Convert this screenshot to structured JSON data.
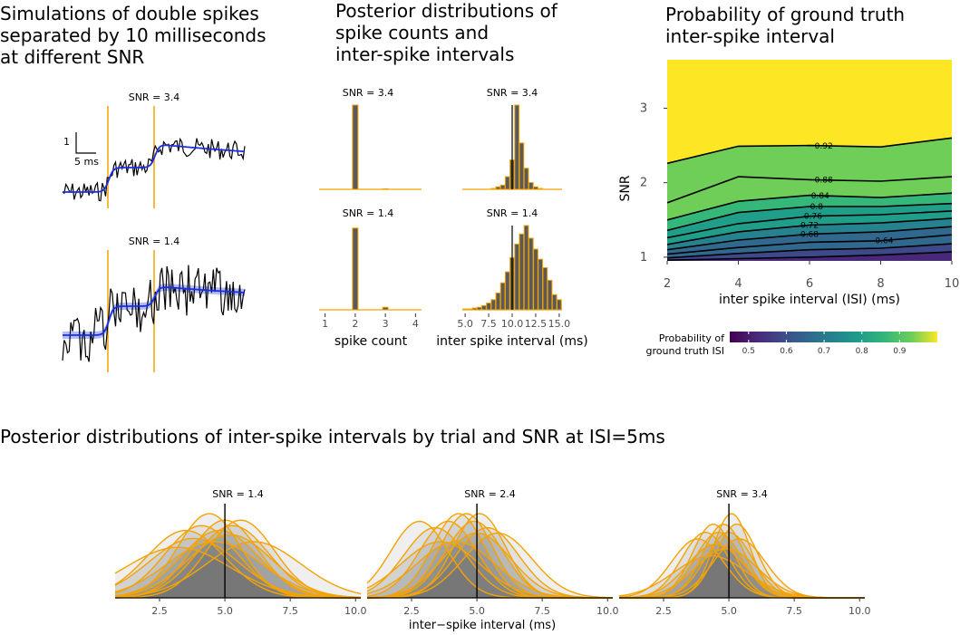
{
  "panel_a": {
    "title": "Simulations of double spikes\nseparated by 10 milliseconds\nat different SNR",
    "scalebar_y": "1",
    "scalebar_x": "5 ms",
    "facets": [
      "SNR = 3.4",
      "SNR = 1.4"
    ]
  },
  "panel_b": {
    "title": "Posterior distributions of\nspike counts and\ninter-spike intervals",
    "facet_top_left": "SNR = 3.4",
    "facet_top_right": "SNR = 3.4",
    "facet_bottom_left": "SNR = 1.4",
    "facet_bottom_right": "SNR = 1.4",
    "xlabel_count": "spike count",
    "xlabel_isi": "inter spike interval (ms)",
    "count_ticks": [
      "1",
      "2",
      "3",
      "4"
    ],
    "isi_ticks": [
      "5.0",
      "7.5",
      "10.0",
      "12.5",
      "15.0"
    ]
  },
  "panel_c": {
    "title": "Probability of ground truth\ninter-spike interval",
    "xlabel": "inter spike interval (ISI) (ms)",
    "ylabel": "SNR",
    "xticks": [
      "2",
      "4",
      "6",
      "8",
      "10"
    ],
    "yticks": [
      "1",
      "2",
      "3"
    ],
    "contour_labels": [
      "0.92",
      "0.88",
      "0.84",
      "0.8",
      "0.76",
      "0.72",
      "0.68",
      "0.64"
    ],
    "legend_title": "Probability of\nground truth ISI",
    "legend_ticks": [
      "0.5",
      "0.6",
      "0.7",
      "0.8",
      "0.9"
    ]
  },
  "panel_d": {
    "title": "Posterior distributions of inter-spike intervals by trial and SNR at ISI=5ms",
    "xlabel": "inter−spike interval (ms)",
    "facets": [
      "SNR = 1.4",
      "SNR = 2.4",
      "SNR = 3.4"
    ],
    "xticks": [
      "2.5",
      "5.0",
      "7.5",
      "10.0"
    ]
  },
  "chart_data": [
    {
      "type": "line",
      "title": "Simulations of double spikes separated by 10 milliseconds at different SNR",
      "facets": [
        "SNR = 3.4",
        "SNR = 1.4"
      ],
      "spike_separation_ms": 10
    },
    {
      "type": "bar",
      "title": "Posterior distributions of spike counts and inter-spike intervals",
      "xlabel": "spike count",
      "categories": [
        1,
        2,
        3,
        4
      ],
      "series": [
        {
          "name": "SNR = 3.4",
          "values": [
            0,
            1.0,
            0.005,
            0
          ]
        },
        {
          "name": "SNR = 1.4",
          "values": [
            0,
            0.97,
            0.03,
            0
          ]
        }
      ]
    },
    {
      "type": "bar",
      "xlabel": "inter spike interval (ms)",
      "x": [
        5.0,
        5.5,
        6.0,
        6.5,
        7.0,
        7.5,
        8.0,
        8.5,
        9.0,
        9.5,
        10.0,
        10.5,
        11.0,
        11.5,
        12.0,
        12.5,
        13.0,
        13.5,
        14.0,
        14.5,
        15.0
      ],
      "xlim": [
        5,
        15
      ],
      "truth_line": 10,
      "series": [
        {
          "name": "SNR = 3.4",
          "values": [
            0,
            0,
            0,
            0,
            0,
            0,
            0.01,
            0.03,
            0.05,
            0.15,
            0.35,
            1.0,
            0.55,
            0.25,
            0.08,
            0.03,
            0.01,
            0,
            0,
            0,
            0
          ]
        },
        {
          "name": "SNR = 1.4",
          "values": [
            0.01,
            0.01,
            0.02,
            0.03,
            0.05,
            0.08,
            0.12,
            0.2,
            0.32,
            0.45,
            0.62,
            0.78,
            0.9,
            1.0,
            0.85,
            0.72,
            0.6,
            0.5,
            0.35,
            0.18,
            0.12
          ]
        }
      ]
    },
    {
      "type": "heatmap",
      "title": "Probability of ground truth inter-spike interval",
      "xlabel": "inter spike interval (ISI) (ms)",
      "ylabel": "SNR",
      "xlim": [
        2,
        10
      ],
      "ylim": [
        0.95,
        3.65
      ],
      "isi": [
        2,
        4,
        6,
        8,
        10
      ],
      "contours": [
        {
          "level": 0.92,
          "snr": [
            2.26,
            2.49,
            2.5,
            2.48,
            2.6
          ]
        },
        {
          "level": 0.88,
          "snr": [
            1.73,
            2.08,
            2.04,
            2.02,
            2.08
          ]
        },
        {
          "level": 0.84,
          "snr": [
            1.5,
            1.75,
            1.83,
            1.8,
            1.86
          ]
        },
        {
          "level": 0.8,
          "snr": [
            1.36,
            1.6,
            1.68,
            1.68,
            1.72
          ]
        },
        {
          "level": 0.76,
          "snr": [
            1.26,
            1.45,
            1.55,
            1.57,
            1.62
          ]
        },
        {
          "level": 0.72,
          "snr": [
            1.17,
            1.34,
            1.43,
            1.46,
            1.52
          ]
        },
        {
          "level": 0.68,
          "snr": [
            1.1,
            1.23,
            1.31,
            1.34,
            1.41
          ]
        },
        {
          "level": 0.64,
          "snr": [
            1.04,
            1.13,
            1.2,
            1.22,
            1.3
          ]
        },
        {
          "level": 0.6,
          "snr": [
            0.99,
            1.05,
            1.1,
            1.12,
            1.18
          ]
        },
        {
          "level": 0.56,
          "snr": [
            0.96,
            0.98,
            1.0,
            1.03,
            1.07
          ]
        }
      ],
      "legend_range": [
        0.45,
        1.0
      ]
    },
    {
      "type": "area",
      "title": "Posterior distributions of inter-spike intervals by trial and SNR at ISI=5ms",
      "xlabel": "inter−spike interval (ms)",
      "xlim": [
        0.8,
        10.2
      ],
      "truth_line": 5,
      "facets": [
        {
          "name": "SNR = 1.4",
          "trials": [
            [
              3.8,
              1.7
            ],
            [
              4.1,
              1.4
            ],
            [
              3.5,
              1.5
            ],
            [
              4.4,
              1.2
            ],
            [
              4.8,
              1.5
            ],
            [
              5.0,
              1.3
            ],
            [
              5.3,
              1.4
            ],
            [
              5.6,
              1.3
            ],
            [
              4.6,
              1.8
            ],
            [
              5.2,
              1.6
            ],
            [
              3.2,
              2.0
            ],
            [
              6.1,
              1.8
            ]
          ]
        },
        {
          "name": "SNR = 2.4",
          "trials": [
            [
              2.8,
              1.1
            ],
            [
              3.4,
              1.2
            ],
            [
              3.9,
              1.1
            ],
            [
              4.3,
              1.0
            ],
            [
              4.6,
              1.0
            ],
            [
              4.9,
              1.1
            ],
            [
              5.1,
              1.0
            ],
            [
              5.0,
              1.3
            ],
            [
              4.2,
              1.5
            ],
            [
              5.4,
              1.2
            ],
            [
              3.6,
              1.5
            ],
            [
              5.8,
              1.3
            ]
          ]
        },
        {
          "name": "SNR = 3.4",
          "trials": [
            [
              3.8,
              1.0
            ],
            [
              4.1,
              0.9
            ],
            [
              4.4,
              0.8
            ],
            [
              4.6,
              0.9
            ],
            [
              4.8,
              0.8
            ],
            [
              5.0,
              0.9
            ],
            [
              5.3,
              0.8
            ],
            [
              5.4,
              1.0
            ],
            [
              4.9,
              1.2
            ],
            [
              4.5,
              1.1
            ],
            [
              5.1,
              0.7
            ],
            [
              4.3,
              1.4
            ]
          ]
        }
      ]
    }
  ]
}
